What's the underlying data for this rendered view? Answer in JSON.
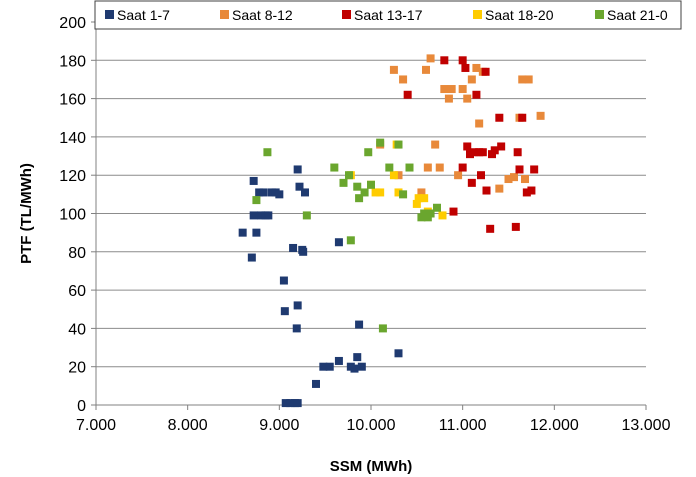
{
  "chart_data": {
    "type": "scatter",
    "xlabel": "SSM (MWh)",
    "ylabel": "PTF (TL/MWh)",
    "xlim": [
      7000,
      13000
    ],
    "ylim": [
      0,
      200
    ],
    "x_ticks": [
      {
        "value": 7000,
        "label": "7.000"
      },
      {
        "value": 8000,
        "label": "8.000"
      },
      {
        "value": 9000,
        "label": "9.000"
      },
      {
        "value": 10000,
        "label": "10.000"
      },
      {
        "value": 11000,
        "label": "11.000"
      },
      {
        "value": 12000,
        "label": "12.000"
      },
      {
        "value": 13000,
        "label": "13.000"
      }
    ],
    "y_ticks": [
      {
        "value": 0,
        "label": "0"
      },
      {
        "value": 20,
        "label": "20"
      },
      {
        "value": 40,
        "label": "40"
      },
      {
        "value": 60,
        "label": "60"
      },
      {
        "value": 80,
        "label": "80"
      },
      {
        "value": 100,
        "label": "100"
      },
      {
        "value": 120,
        "label": "120"
      },
      {
        "value": 140,
        "label": "140"
      },
      {
        "value": 160,
        "label": "160"
      },
      {
        "value": 180,
        "label": "180"
      },
      {
        "value": 200,
        "label": "200"
      }
    ],
    "grid": "horizontal",
    "legend_position": "top",
    "series": [
      {
        "name": "Saat 1-7",
        "color": "#1f3a70",
        "points": [
          [
            8600,
            90
          ],
          [
            8700,
            77
          ],
          [
            8720,
            117
          ],
          [
            8720,
            99
          ],
          [
            8750,
            90
          ],
          [
            8780,
            111
          ],
          [
            8800,
            99
          ],
          [
            8830,
            111
          ],
          [
            8850,
            99
          ],
          [
            8880,
            99
          ],
          [
            8920,
            111
          ],
          [
            8960,
            111
          ],
          [
            9000,
            110
          ],
          [
            9050,
            65
          ],
          [
            9060,
            49
          ],
          [
            9070,
            1
          ],
          [
            9120,
            1
          ],
          [
            9150,
            82
          ],
          [
            9170,
            1
          ],
          [
            9190,
            40
          ],
          [
            9200,
            1
          ],
          [
            9200,
            52
          ],
          [
            9200,
            123
          ],
          [
            9220,
            114
          ],
          [
            9250,
            81
          ],
          [
            9260,
            80
          ],
          [
            9280,
            111
          ],
          [
            9400,
            11
          ],
          [
            9480,
            20
          ],
          [
            9550,
            20
          ],
          [
            9650,
            23
          ],
          [
            9650,
            85
          ],
          [
            9780,
            20
          ],
          [
            9820,
            19
          ],
          [
            9850,
            25
          ],
          [
            9870,
            42
          ],
          [
            9900,
            20
          ],
          [
            10300,
            27
          ]
        ]
      },
      {
        "name": "Saat 8-12",
        "color": "#e8893a",
        "points": [
          [
            10100,
            136
          ],
          [
            10250,
            175
          ],
          [
            10300,
            120
          ],
          [
            10350,
            170
          ],
          [
            10550,
            111
          ],
          [
            10600,
            175
          ],
          [
            10620,
            124
          ],
          [
            10650,
            181
          ],
          [
            10700,
            136
          ],
          [
            10750,
            124
          ],
          [
            10800,
            165
          ],
          [
            10850,
            160
          ],
          [
            10880,
            165
          ],
          [
            10950,
            120
          ],
          [
            11000,
            165
          ],
          [
            11050,
            160
          ],
          [
            11100,
            170
          ],
          [
            11150,
            176
          ],
          [
            11180,
            147
          ],
          [
            11220,
            174
          ],
          [
            11400,
            113
          ],
          [
            11500,
            118
          ],
          [
            11560,
            119
          ],
          [
            11620,
            150
          ],
          [
            11650,
            170
          ],
          [
            11680,
            118
          ],
          [
            11720,
            170
          ],
          [
            11850,
            151
          ]
        ]
      },
      {
        "name": "Saat 13-17",
        "color": "#c00000",
        "points": [
          [
            10400,
            162
          ],
          [
            10800,
            180
          ],
          [
            10900,
            101
          ],
          [
            11000,
            180
          ],
          [
            11000,
            124
          ],
          [
            11030,
            176
          ],
          [
            11050,
            135
          ],
          [
            11080,
            131
          ],
          [
            11100,
            116
          ],
          [
            11130,
            132
          ],
          [
            11150,
            162
          ],
          [
            11180,
            132
          ],
          [
            11200,
            120
          ],
          [
            11220,
            132
          ],
          [
            11250,
            174
          ],
          [
            11260,
            112
          ],
          [
            11300,
            92
          ],
          [
            11320,
            131
          ],
          [
            11350,
            133
          ],
          [
            11400,
            150
          ],
          [
            11420,
            135
          ],
          [
            11580,
            93
          ],
          [
            11600,
            132
          ],
          [
            11620,
            123
          ],
          [
            11650,
            150
          ],
          [
            11700,
            111
          ],
          [
            11750,
            112
          ],
          [
            11780,
            123
          ]
        ]
      },
      {
        "name": "Saat 18-20",
        "color": "#ffcc00",
        "points": [
          [
            9780,
            120
          ],
          [
            10000,
            115
          ],
          [
            10050,
            111
          ],
          [
            10100,
            111
          ],
          [
            10250,
            120
          ],
          [
            10280,
            136
          ],
          [
            10300,
            111
          ],
          [
            10500,
            105
          ],
          [
            10520,
            108
          ],
          [
            10580,
            108
          ],
          [
            10620,
            101
          ],
          [
            10780,
            99
          ]
        ]
      },
      {
        "name": "Saat 21-0",
        "color": "#6aa62e",
        "points": [
          [
            8750,
            107
          ],
          [
            8870,
            132
          ],
          [
            9300,
            99
          ],
          [
            9600,
            124
          ],
          [
            9700,
            116
          ],
          [
            9760,
            120
          ],
          [
            9780,
            86
          ],
          [
            9850,
            114
          ],
          [
            9870,
            108
          ],
          [
            9930,
            111
          ],
          [
            9970,
            132
          ],
          [
            10000,
            115
          ],
          [
            10100,
            137
          ],
          [
            10130,
            40
          ],
          [
            10200,
            124
          ],
          [
            10300,
            136
          ],
          [
            10350,
            110
          ],
          [
            10420,
            124
          ],
          [
            10550,
            98
          ],
          [
            10580,
            100
          ],
          [
            10620,
            98
          ],
          [
            10650,
            100
          ],
          [
            10720,
            103
          ]
        ]
      }
    ]
  }
}
